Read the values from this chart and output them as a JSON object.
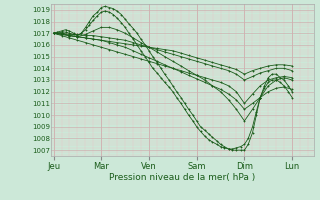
{
  "title": "",
  "xlabel": "Pression niveau de la mer( hPa )",
  "background_color": "#cce8d8",
  "grid_major_color": "#d0b0b0",
  "grid_minor_color": "#e8c8c8",
  "line_color": "#1a5c1a",
  "ylim": [
    1006.5,
    1019.5
  ],
  "yticks": [
    1007,
    1008,
    1009,
    1010,
    1011,
    1012,
    1013,
    1014,
    1015,
    1016,
    1017,
    1018,
    1019
  ],
  "day_labels": [
    "Jeu",
    "Mar",
    "Ven",
    "Sam",
    "Dim",
    "Lun"
  ],
  "day_positions": [
    0.0,
    1.0,
    2.0,
    3.0,
    4.0,
    5.0
  ],
  "xlim": [
    -0.05,
    5.45
  ],
  "lines": [
    {
      "x": [
        0.0,
        0.08,
        0.17,
        0.25,
        0.33,
        0.42,
        0.5,
        0.58,
        0.67,
        0.75,
        0.83,
        0.92,
        1.0,
        1.08,
        1.17,
        1.25,
        1.33,
        1.42,
        1.5,
        1.58,
        1.67,
        1.75,
        1.83,
        1.92,
        2.0,
        2.08,
        2.17,
        2.25,
        2.33,
        2.42,
        2.5,
        2.58,
        2.67,
        2.75,
        2.83,
        2.92,
        3.0,
        3.08,
        3.17,
        3.25,
        3.33,
        3.42,
        3.5,
        3.58,
        3.67,
        3.75,
        3.83,
        3.92,
        4.0,
        4.08,
        4.17,
        4.25,
        4.33,
        4.42,
        4.5,
        4.58,
        4.67,
        4.75,
        4.83,
        4.92,
        5.0
      ],
      "y": [
        1017.0,
        1017.1,
        1017.2,
        1017.3,
        1017.2,
        1017.0,
        1016.8,
        1017.0,
        1017.5,
        1018.0,
        1018.5,
        1018.8,
        1019.2,
        1019.3,
        1019.2,
        1019.1,
        1018.9,
        1018.6,
        1018.2,
        1017.8,
        1017.4,
        1017.0,
        1016.5,
        1016.0,
        1015.5,
        1015.0,
        1014.5,
        1014.0,
        1013.5,
        1013.0,
        1012.5,
        1012.0,
        1011.5,
        1011.0,
        1010.5,
        1010.0,
        1009.5,
        1009.0,
        1008.7,
        1008.4,
        1008.1,
        1007.8,
        1007.5,
        1007.3,
        1007.1,
        1007.0,
        1007.0,
        1007.0,
        1007.0,
        1007.5,
        1008.5,
        1010.0,
        1011.5,
        1012.5,
        1013.2,
        1013.5,
        1013.5,
        1013.2,
        1013.0,
        1012.5,
        1012.0
      ]
    },
    {
      "x": [
        0.0,
        0.08,
        0.17,
        0.25,
        0.33,
        0.42,
        0.5,
        0.58,
        0.67,
        0.75,
        0.83,
        0.92,
        1.0,
        1.08,
        1.17,
        1.25,
        1.33,
        1.42,
        1.5,
        1.58,
        1.67,
        1.75,
        1.83,
        1.92,
        2.0,
        2.08,
        2.17,
        2.25,
        2.33,
        2.42,
        2.5,
        2.58,
        2.67,
        2.75,
        2.83,
        2.92,
        3.0,
        3.08,
        3.17,
        3.25,
        3.33,
        3.42,
        3.5,
        3.58,
        3.67,
        3.75,
        3.83,
        3.92,
        4.0,
        4.08,
        4.17,
        4.25,
        4.33,
        4.42,
        4.5,
        4.58,
        4.67,
        4.75,
        4.83,
        4.92,
        5.0
      ],
      "y": [
        1017.0,
        1017.0,
        1017.1,
        1017.1,
        1017.0,
        1016.9,
        1016.8,
        1017.0,
        1017.3,
        1017.7,
        1018.1,
        1018.5,
        1018.8,
        1018.9,
        1018.8,
        1018.6,
        1018.3,
        1017.9,
        1017.5,
        1017.0,
        1016.5,
        1016.0,
        1015.5,
        1015.0,
        1014.5,
        1014.0,
        1013.6,
        1013.2,
        1012.8,
        1012.4,
        1012.0,
        1011.5,
        1011.0,
        1010.5,
        1010.0,
        1009.5,
        1009.0,
        1008.6,
        1008.2,
        1007.9,
        1007.7,
        1007.5,
        1007.3,
        1007.2,
        1007.1,
        1007.1,
        1007.2,
        1007.3,
        1007.5,
        1008.0,
        1009.0,
        1010.3,
        1011.5,
        1012.3,
        1012.8,
        1013.0,
        1013.0,
        1012.8,
        1012.5,
        1012.0,
        1011.5
      ]
    },
    {
      "x": [
        0.0,
        0.17,
        0.33,
        0.5,
        0.67,
        0.83,
        1.0,
        1.17,
        1.33,
        1.5,
        1.67,
        1.83,
        2.0,
        2.17,
        2.33,
        2.5,
        2.67,
        2.83,
        3.0,
        3.17,
        3.33,
        3.5,
        3.67,
        3.83,
        4.0,
        4.17,
        4.33,
        4.5,
        4.67,
        4.83,
        5.0
      ],
      "y": [
        1017.0,
        1017.0,
        1016.8,
        1016.7,
        1016.9,
        1017.2,
        1017.5,
        1017.5,
        1017.3,
        1017.0,
        1016.6,
        1016.2,
        1015.8,
        1015.4,
        1015.0,
        1014.6,
        1014.2,
        1013.8,
        1013.4,
        1013.0,
        1012.5,
        1012.0,
        1011.3,
        1010.5,
        1009.5,
        1010.5,
        1011.5,
        1012.5,
        1013.0,
        1013.2,
        1013.0
      ]
    },
    {
      "x": [
        0.0,
        0.17,
        0.33,
        0.5,
        0.67,
        0.83,
        1.0,
        1.17,
        1.33,
        1.5,
        1.67,
        1.83,
        2.0,
        2.17,
        2.33,
        2.5,
        2.67,
        2.83,
        3.0,
        3.17,
        3.33,
        3.5,
        3.67,
        3.83,
        4.0,
        4.17,
        4.33,
        4.5,
        4.67,
        4.83,
        5.0
      ],
      "y": [
        1017.0,
        1016.8,
        1016.6,
        1016.4,
        1016.2,
        1016.0,
        1015.8,
        1015.6,
        1015.4,
        1015.2,
        1015.0,
        1014.8,
        1014.6,
        1014.4,
        1014.2,
        1014.0,
        1013.8,
        1013.6,
        1013.4,
        1013.2,
        1013.0,
        1012.8,
        1012.5,
        1012.0,
        1011.0,
        1011.8,
        1012.5,
        1013.0,
        1013.2,
        1013.3,
        1013.2
      ]
    },
    {
      "x": [
        0.0,
        0.17,
        0.33,
        0.5,
        0.67,
        0.83,
        1.0,
        1.17,
        1.33,
        1.5,
        1.67,
        1.83,
        2.0,
        2.17,
        2.33,
        2.5,
        2.67,
        2.83,
        3.0,
        3.17,
        3.33,
        3.5,
        3.67,
        3.83,
        4.0,
        4.17,
        4.33,
        4.5,
        4.67,
        4.83,
        5.0
      ],
      "y": [
        1017.0,
        1016.9,
        1016.8,
        1016.7,
        1016.6,
        1016.5,
        1016.4,
        1016.3,
        1016.2,
        1016.1,
        1016.0,
        1015.9,
        1015.8,
        1015.7,
        1015.6,
        1015.5,
        1015.3,
        1015.1,
        1014.9,
        1014.7,
        1014.5,
        1014.3,
        1014.1,
        1013.9,
        1013.5,
        1013.8,
        1014.0,
        1014.2,
        1014.3,
        1014.3,
        1014.2
      ]
    },
    {
      "x": [
        0.0,
        0.17,
        0.33,
        0.5,
        0.67,
        0.83,
        1.0,
        1.17,
        1.33,
        1.5,
        1.67,
        1.83,
        2.0,
        2.17,
        2.33,
        2.5,
        2.67,
        2.83,
        3.0,
        3.17,
        3.33,
        3.5,
        3.67,
        3.83,
        4.0,
        4.17,
        4.33,
        4.5,
        4.67,
        4.83,
        5.0
      ],
      "y": [
        1017.0,
        1017.0,
        1016.9,
        1016.9,
        1016.8,
        1016.8,
        1016.7,
        1016.6,
        1016.5,
        1016.4,
        1016.2,
        1016.0,
        1015.8,
        1015.6,
        1015.4,
        1015.2,
        1015.0,
        1014.8,
        1014.6,
        1014.4,
        1014.2,
        1014.0,
        1013.8,
        1013.5,
        1013.0,
        1013.3,
        1013.6,
        1013.8,
        1014.0,
        1014.0,
        1013.8
      ]
    },
    {
      "x": [
        0.0,
        0.17,
        0.33,
        0.5,
        0.67,
        0.83,
        1.0,
        1.17,
        1.33,
        1.5,
        1.67,
        1.83,
        2.0,
        2.17,
        2.33,
        2.5,
        2.67,
        2.83,
        3.0,
        3.17,
        3.33,
        3.5,
        3.67,
        3.83,
        4.0,
        4.17,
        4.33,
        4.5,
        4.67,
        4.83,
        5.0
      ],
      "y": [
        1017.0,
        1016.9,
        1016.8,
        1016.7,
        1016.6,
        1016.5,
        1016.4,
        1016.2,
        1016.0,
        1015.8,
        1015.5,
        1015.2,
        1014.9,
        1014.6,
        1014.3,
        1014.0,
        1013.7,
        1013.4,
        1013.1,
        1012.8,
        1012.5,
        1012.2,
        1011.8,
        1011.3,
        1010.5,
        1011.0,
        1011.5,
        1012.0,
        1012.3,
        1012.4,
        1012.2
      ]
    }
  ]
}
